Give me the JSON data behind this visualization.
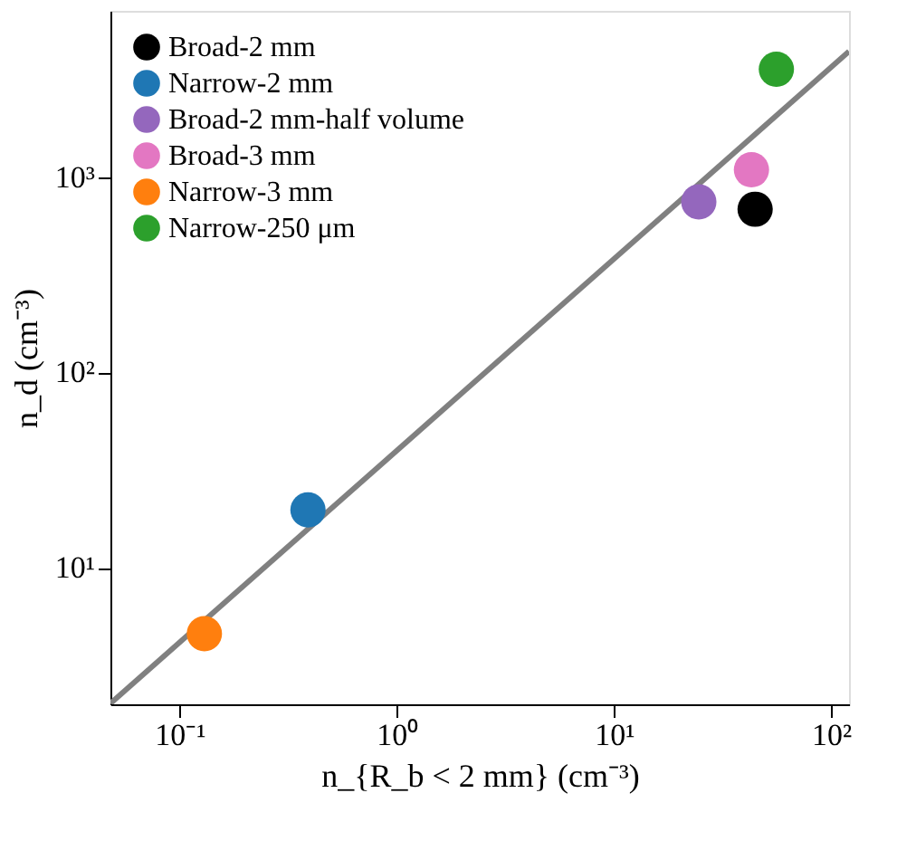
{
  "chart_data": {
    "type": "scatter",
    "xlabel": "n_{R_b < 2 mm} (cm⁻³)",
    "ylabel": "n_d (cm⁻³)",
    "log": "xy",
    "xlim": [
      0.048,
      121
    ],
    "ylim": [
      2,
      7100
    ],
    "xticks": [
      {
        "value": 0.1,
        "label": "10⁻¹"
      },
      {
        "value": 1,
        "label": "10⁰"
      },
      {
        "value": 10,
        "label": "10¹"
      },
      {
        "value": 100,
        "label": "10²"
      }
    ],
    "yticks": [
      {
        "value": 10,
        "label": "10¹"
      },
      {
        "value": 100,
        "label": "10²"
      },
      {
        "value": 1000,
        "label": "10³"
      }
    ],
    "marker": "circle",
    "legend": "top left",
    "grid": false,
    "series": [
      {
        "name": "Broad-2 mm",
        "color": "#000000",
        "x": [
          44.7
        ],
        "values": [
          685
        ]
      },
      {
        "name": "Narrow-2 mm",
        "color": "#1f77b4",
        "x": [
          0.39
        ],
        "values": [
          19.8
        ]
      },
      {
        "name": "Broad-2 mm-half volume",
        "color": "#9467bd",
        "x": [
          24.6
        ],
        "values": [
          747
        ]
      },
      {
        "name": "Broad-3 mm",
        "color": "#e377c2",
        "x": [
          43
        ],
        "values": [
          1090
        ]
      },
      {
        "name": "Narrow-3 mm",
        "color": "#ff7f0e",
        "x": [
          0.13
        ],
        "values": [
          4.6
        ]
      },
      {
        "name": "Narrow-250 μm",
        "color": "#2ca02c",
        "x": [
          56
        ],
        "values": [
          3570
        ]
      },
      {
        "type": "line",
        "marker": "none",
        "color": "#808080",
        "x": [
          0.048,
          121
        ],
        "values": [
          2.02,
          4400
        ]
      }
    ]
  }
}
